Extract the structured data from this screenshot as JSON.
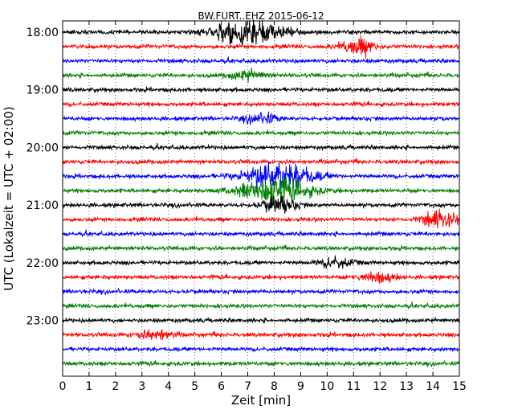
{
  "chart_data": {
    "type": "line",
    "title": "BW.FURT..EHZ 2015-06-12",
    "xlabel": "Zeit  [min]",
    "ylabel": "UTC (Lokalzeit = UTC + 02:00)",
    "xlim": [
      0,
      15
    ],
    "x_ticks": [
      "0",
      "1",
      "2",
      "3",
      "4",
      "5",
      "6",
      "7",
      "8",
      "9",
      "10",
      "11",
      "12",
      "13",
      "14",
      "15"
    ],
    "y_tick_labels": [
      "18:00",
      "19:00",
      "20:00",
      "21:00",
      "22:00",
      "23:00"
    ],
    "trace_start_times": [
      "18:00",
      "18:15",
      "18:30",
      "18:45",
      "19:00",
      "19:15",
      "19:30",
      "19:45",
      "20:00",
      "20:15",
      "20:30",
      "20:45",
      "21:00",
      "21:15",
      "21:30",
      "21:45",
      "22:00",
      "22:15",
      "22:30",
      "22:45",
      "23:00",
      "23:15",
      "23:30",
      "23:45"
    ],
    "trace_colors": [
      "#000000",
      "#ff0000",
      "#0000ff",
      "#008000"
    ],
    "grid": "vertical-dotted",
    "events": [
      {
        "trace": 0,
        "minute": 7.0,
        "amplitude": "very-high"
      },
      {
        "trace": 1,
        "minute": 11.2,
        "amplitude": "high"
      },
      {
        "trace": 3,
        "minute": 7.0,
        "amplitude": "medium"
      },
      {
        "trace": 6,
        "minute": 7.5,
        "amplitude": "medium"
      },
      {
        "trace": 10,
        "minute": 8.2,
        "amplitude": "very-high"
      },
      {
        "trace": 11,
        "minute": 8.0,
        "amplitude": "very-high"
      },
      {
        "trace": 12,
        "minute": 8.2,
        "amplitude": "high"
      },
      {
        "trace": 13,
        "minute": 14.3,
        "amplitude": "high"
      },
      {
        "trace": 16,
        "minute": 10.3,
        "amplitude": "medium"
      },
      {
        "trace": 17,
        "minute": 11.9,
        "amplitude": "medium"
      },
      {
        "trace": 21,
        "minute": 3.5,
        "amplitude": "medium"
      }
    ]
  }
}
